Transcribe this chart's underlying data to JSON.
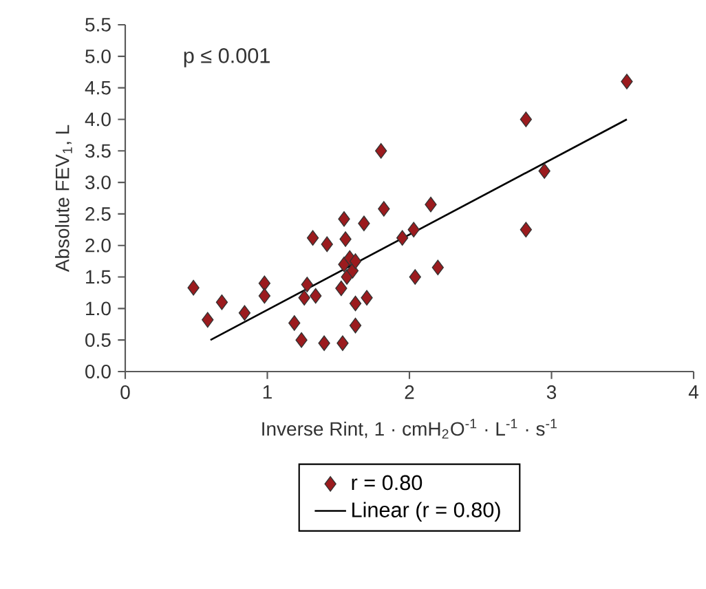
{
  "chart_data": {
    "type": "scatter",
    "xlabel": "Inverse Rint, 1 · cmH$_{2}$O$^{-1}$ · L$^{-1}$ · s$^{-1}$",
    "ylabel": "Absolute FEV$_{1}$, L",
    "annotations": [
      "p ≤ 0.001"
    ],
    "xlim": [
      0,
      4
    ],
    "xticks": [
      0,
      1,
      2,
      3,
      4
    ],
    "ylim": [
      0,
      5.5
    ],
    "yticks": [
      {
        "value": 0,
        "label": "0.0"
      },
      {
        "value": 0.5,
        "label": "0.5"
      },
      {
        "value": 1,
        "label": "1.0"
      },
      {
        "value": 1.5,
        "label": "1.5"
      },
      {
        "value": 2,
        "label": "2.0"
      },
      {
        "value": 2.5,
        "label": "2.5"
      },
      {
        "value": 3,
        "label": "3.0"
      },
      {
        "value": 3.5,
        "label": "3.5"
      },
      {
        "value": 4,
        "label": "4.0"
      },
      {
        "value": 4.5,
        "label": "4.5"
      },
      {
        "value": 5,
        "label": "5.0"
      },
      {
        "value": 5.5,
        "label": "5.5"
      }
    ],
    "legend": "bottom",
    "series": [
      {
        "name": "r = 0.80",
        "marker": "diamond",
        "color": "#9b1b1e",
        "x": [
          0.48,
          0.58,
          0.68,
          0.84,
          0.98,
          0.98,
          1.19,
          1.24,
          1.26,
          1.28,
          1.32,
          1.34,
          1.4,
          1.42,
          1.53,
          1.52,
          1.54,
          1.54,
          1.55,
          1.56,
          1.58,
          1.6,
          1.62,
          1.62,
          1.62,
          1.68,
          1.7,
          1.8,
          1.82,
          1.95,
          2.03,
          2.04,
          2.15,
          2.2,
          2.82,
          2.82,
          2.95,
          3.53
        ],
        "values": [
          1.33,
          0.82,
          1.1,
          0.93,
          1.4,
          1.2,
          0.77,
          0.5,
          1.17,
          1.38,
          2.12,
          1.2,
          0.45,
          2.02,
          0.45,
          1.32,
          1.7,
          2.42,
          2.1,
          1.5,
          1.8,
          1.6,
          1.75,
          1.08,
          0.73,
          2.35,
          1.17,
          3.5,
          2.58,
          2.12,
          2.25,
          1.5,
          2.65,
          1.65,
          4.0,
          2.25,
          3.18,
          4.6
        ]
      },
      {
        "name": "Linear (r = 0.80)",
        "type": "line",
        "color": "#000000",
        "x": [
          0.6,
          3.53
        ],
        "values": [
          0.5,
          4.0
        ]
      }
    ]
  }
}
